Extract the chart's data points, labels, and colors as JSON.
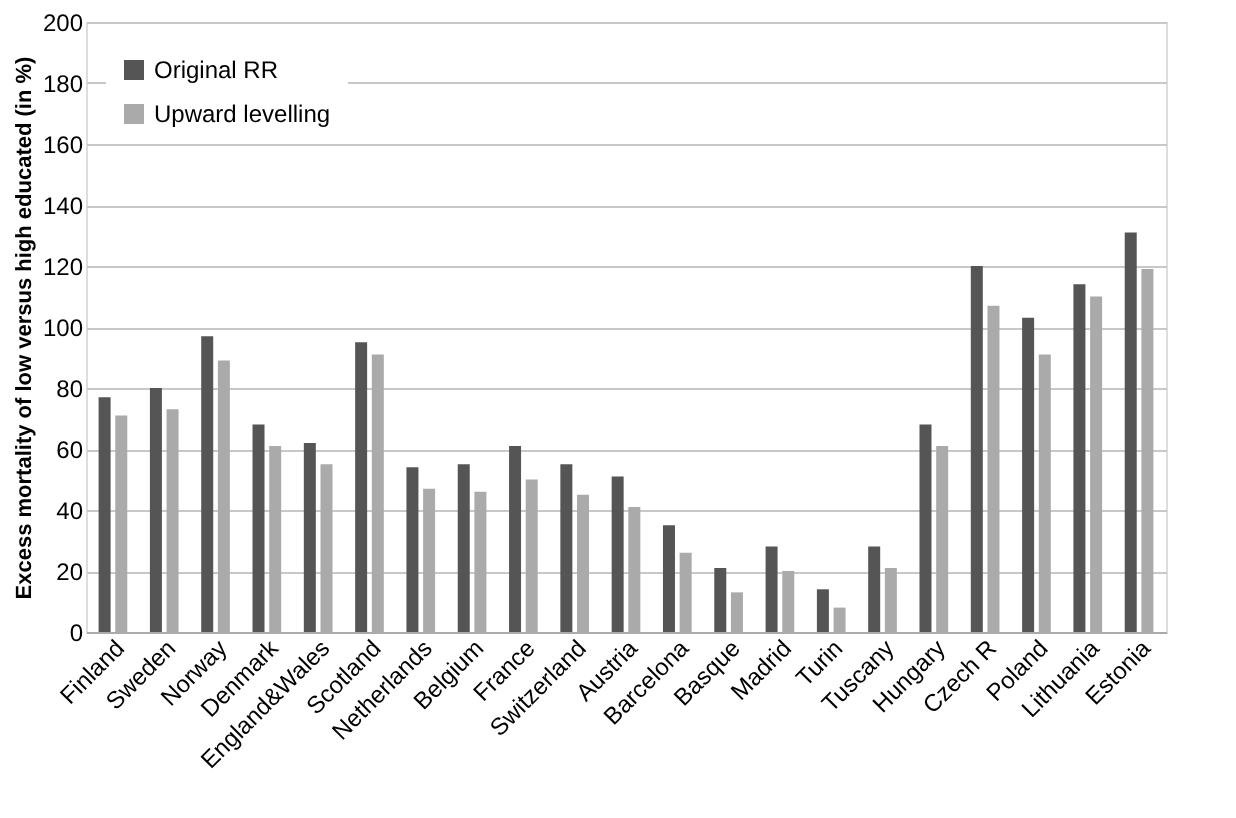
{
  "chart_data": {
    "type": "bar",
    "ylabel": "Excess mortality of low versus high educated (in %)",
    "categories": [
      "Finland",
      "Sweden",
      "Norway",
      "Denmark",
      "England&Wales",
      "Scotland",
      "Netherlands",
      "Belgium",
      "France",
      "Switzerland",
      "Austria",
      "Barcelona",
      "Basque",
      "Madrid",
      "Turin",
      "Tuscany",
      "Hungary",
      "Czech R",
      "Poland",
      "Lithuania",
      "Estonia"
    ],
    "series": [
      {
        "name": "Original RR",
        "color": "#555555",
        "values": [
          77,
          80,
          97,
          68,
          62,
          95,
          54,
          55,
          61,
          55,
          51,
          35,
          21,
          28,
          14,
          28,
          68,
          120,
          103,
          114,
          131
        ]
      },
      {
        "name": "Upward levelling",
        "color": "#aaaaaa",
        "values": [
          71,
          73,
          89,
          61,
          55,
          91,
          47,
          46,
          50,
          45,
          41,
          26,
          13,
          20,
          8,
          21,
          61,
          107,
          91,
          110,
          119
        ]
      }
    ],
    "ylim": [
      0,
      200
    ],
    "yticks": [
      0,
      20,
      40,
      60,
      80,
      100,
      120,
      140,
      160,
      180,
      200
    ],
    "grid": "y",
    "legend": "top left"
  }
}
